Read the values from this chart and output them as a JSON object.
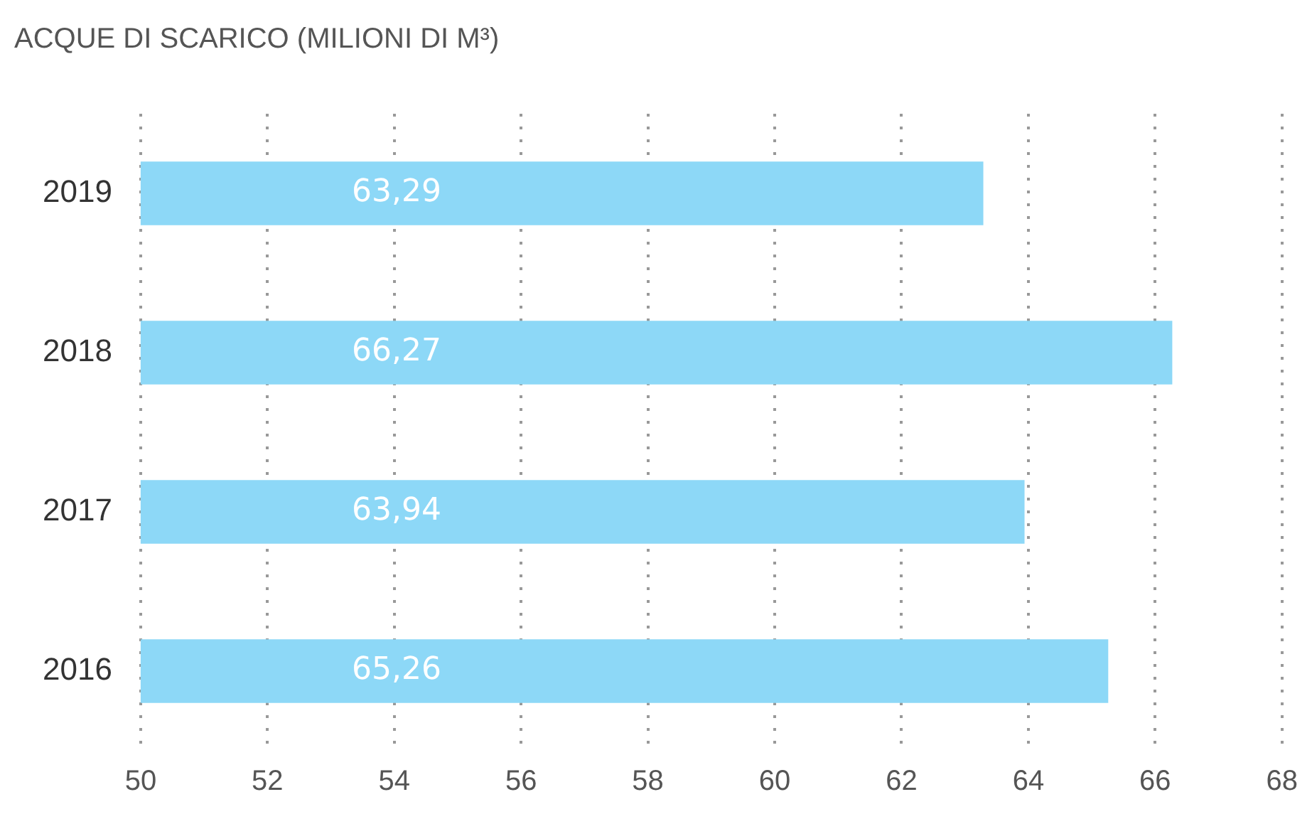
{
  "chart_data": {
    "type": "bar",
    "orientation": "horizontal",
    "title": "ACQUE DI SCARICO (MILIONI DI M³)",
    "categories": [
      "2019",
      "2018",
      "2017",
      "2016"
    ],
    "values": [
      63.29,
      66.27,
      63.94,
      65.26
    ],
    "value_labels": [
      "63,29",
      "66,27",
      "63,94",
      "65,26"
    ],
    "color": "#8dd8f7",
    "xlim": [
      50,
      68
    ],
    "xticks": [
      50,
      52,
      54,
      56,
      58,
      60,
      62,
      64,
      66,
      68
    ],
    "grid": "x",
    "legend": false
  }
}
